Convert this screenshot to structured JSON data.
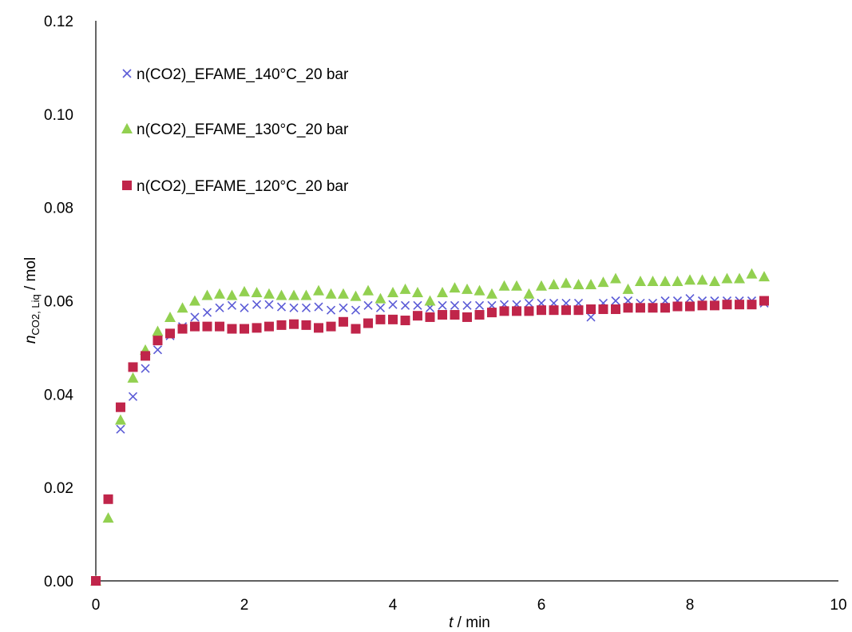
{
  "chart_data": {
    "type": "scatter",
    "x_label": {
      "italic": "t",
      "rest": " / min"
    },
    "y_label": {
      "italic": "n",
      "subscript": "CO2, Liq",
      "rest": " / mol"
    },
    "xlim": [
      0,
      10
    ],
    "ylim": [
      0,
      0.12
    ],
    "x_ticks": [
      0,
      2,
      4,
      6,
      8,
      10
    ],
    "y_ticks": [
      0.0,
      0.02,
      0.04,
      0.06,
      0.08,
      0.1,
      0.12
    ],
    "x_tick_labels": [
      "0",
      "2",
      "4",
      "6",
      "8",
      "10"
    ],
    "y_tick_labels": [
      "0.00",
      "0.02",
      "0.04",
      "0.06",
      "0.08",
      "0.10",
      "0.12"
    ],
    "grid": false,
    "legend_position": "top-left",
    "x": [
      0,
      0.167,
      0.333,
      0.5,
      0.667,
      0.833,
      1.0,
      1.167,
      1.333,
      1.5,
      1.667,
      1.833,
      2.0,
      2.167,
      2.333,
      2.5,
      2.667,
      2.833,
      3.0,
      3.167,
      3.333,
      3.5,
      3.667,
      3.833,
      4.0,
      4.167,
      4.333,
      4.5,
      4.667,
      4.833,
      5.0,
      5.167,
      5.333,
      5.5,
      5.667,
      5.833,
      6.0,
      6.167,
      6.333,
      6.5,
      6.667,
      6.833,
      7.0,
      7.167,
      7.333,
      7.5,
      7.667,
      7.833,
      8.0,
      8.167,
      8.333,
      8.5,
      8.667,
      8.833,
      9.0
    ],
    "series": [
      {
        "name": "n(CO2)_EFAME_140°C_20 bar",
        "marker": "x",
        "color": "#5b5bd6",
        "values": [
          0,
          0.0175,
          0.0325,
          0.0395,
          0.0455,
          0.0495,
          0.0525,
          0.0545,
          0.0565,
          0.0575,
          0.0585,
          0.059,
          0.0585,
          0.0592,
          0.0592,
          0.0587,
          0.0585,
          0.0585,
          0.0587,
          0.058,
          0.0585,
          0.058,
          0.059,
          0.0585,
          0.0592,
          0.059,
          0.059,
          0.0585,
          0.059,
          0.059,
          0.059,
          0.059,
          0.059,
          0.0592,
          0.0592,
          0.0595,
          0.0595,
          0.0595,
          0.0595,
          0.0595,
          0.0565,
          0.0595,
          0.06,
          0.06,
          0.0595,
          0.0595,
          0.06,
          0.06,
          0.0605,
          0.06,
          0.06,
          0.06,
          0.06,
          0.06,
          0.0595
        ]
      },
      {
        "name": "n(CO2)_EFAME_130°C_20 bar",
        "marker": "triangle",
        "color": "#92d050",
        "values": [
          0,
          0.0135,
          0.0345,
          0.0435,
          0.0495,
          0.0535,
          0.0565,
          0.0585,
          0.06,
          0.0612,
          0.0615,
          0.0612,
          0.062,
          0.0618,
          0.0615,
          0.0612,
          0.0612,
          0.0612,
          0.0622,
          0.0615,
          0.0615,
          0.061,
          0.0622,
          0.0605,
          0.0618,
          0.0625,
          0.0618,
          0.06,
          0.0618,
          0.0628,
          0.0625,
          0.0622,
          0.0615,
          0.0632,
          0.0632,
          0.0615,
          0.0632,
          0.0635,
          0.0638,
          0.0635,
          0.0635,
          0.064,
          0.0648,
          0.0625,
          0.0642,
          0.0642,
          0.0642,
          0.0642,
          0.0645,
          0.0645,
          0.0642,
          0.0648,
          0.0648,
          0.0658,
          0.0652
        ]
      },
      {
        "name": "n(CO2)_EFAME_120°C_20 bar",
        "marker": "square",
        "color": "#c0254a",
        "values": [
          0,
          0.0175,
          0.0372,
          0.0458,
          0.0482,
          0.0515,
          0.053,
          0.054,
          0.0545,
          0.0545,
          0.0545,
          0.054,
          0.054,
          0.0542,
          0.0545,
          0.0548,
          0.055,
          0.0548,
          0.0542,
          0.0545,
          0.0555,
          0.054,
          0.0552,
          0.056,
          0.056,
          0.0558,
          0.0568,
          0.0565,
          0.057,
          0.057,
          0.0565,
          0.057,
          0.0575,
          0.0578,
          0.0578,
          0.0578,
          0.058,
          0.058,
          0.058,
          0.058,
          0.0582,
          0.0582,
          0.0582,
          0.0585,
          0.0585,
          0.0585,
          0.0585,
          0.0588,
          0.0588,
          0.059,
          0.059,
          0.0592,
          0.0592,
          0.0592,
          0.06
        ]
      }
    ]
  }
}
